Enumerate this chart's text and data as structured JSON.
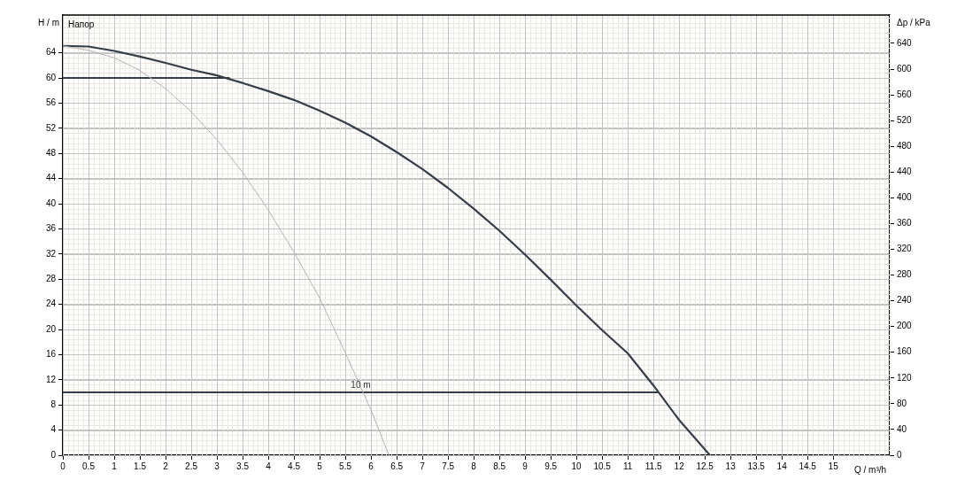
{
  "chart_data": {
    "type": "line",
    "xlabel": "Q / m³/h",
    "ylabel": "H / m",
    "y2label": "Δp / kPa",
    "annotations": [
      "Напор",
      {
        "text": "10 m",
        "x": 5.8,
        "y": 10
      }
    ],
    "series": [
      {
        "color": "#b4b4b4",
        "x": [
          0,
          0.5,
          1,
          1.5,
          2,
          2.5,
          3,
          3.5,
          4,
          4.5,
          5,
          5.5,
          6,
          6.35
        ],
        "values": [
          65.1,
          64.4,
          63.2,
          61.2,
          58.3,
          54.6,
          50.2,
          45.0,
          39.0,
          32.3,
          25.0,
          16.3,
          7.2,
          0
        ]
      },
      {
        "color": "#353d48",
        "x": [
          0,
          0.5,
          1,
          1.5,
          2,
          2.5,
          3,
          3.5,
          4,
          4.5,
          5,
          5.5,
          6,
          6.5,
          7,
          7.5,
          8,
          8.5,
          9,
          9.5,
          10,
          10.5,
          11,
          11.5,
          12,
          12.6
        ],
        "values": [
          65.1,
          65.0,
          64.3,
          63.4,
          62.4,
          61.3,
          60.4,
          59.2,
          57.9,
          56.5,
          54.8,
          52.9,
          50.7,
          48.2,
          45.5,
          42.5,
          39.2,
          35.7,
          31.9,
          27.9,
          23.8,
          19.9,
          16.2,
          11.1,
          5.6,
          0
        ]
      },
      {
        "color": "#353d48",
        "x": [
          0,
          3.25
        ],
        "values": [
          60,
          60
        ]
      },
      {
        "color": "#353d48",
        "x": [
          0,
          11.6
        ],
        "values": [
          10,
          10
        ]
      }
    ],
    "xlim": [
      0,
      16.1
    ],
    "xticks": [
      0,
      0.5,
      1,
      1.5,
      2,
      2.5,
      3,
      3.5,
      4,
      4.5,
      5,
      5.5,
      6,
      6.5,
      7,
      7.5,
      8,
      8.5,
      9,
      9.5,
      10,
      10.5,
      11,
      11.5,
      12,
      12.5,
      13,
      13.5,
      14,
      14.5,
      15
    ],
    "ylim": [
      0,
      70
    ],
    "yticks": [
      0,
      4,
      8,
      12,
      16,
      20,
      24,
      28,
      32,
      36,
      40,
      44,
      48,
      52,
      56,
      60,
      64
    ],
    "y2lim": [
      0,
      684
    ],
    "y2ticks": [
      0,
      40,
      80,
      120,
      160,
      200,
      240,
      280,
      320,
      360,
      400,
      440,
      480,
      520,
      560,
      600,
      640
    ],
    "grid": true,
    "legend": false,
    "marker": "none",
    "line_style": "solid"
  }
}
